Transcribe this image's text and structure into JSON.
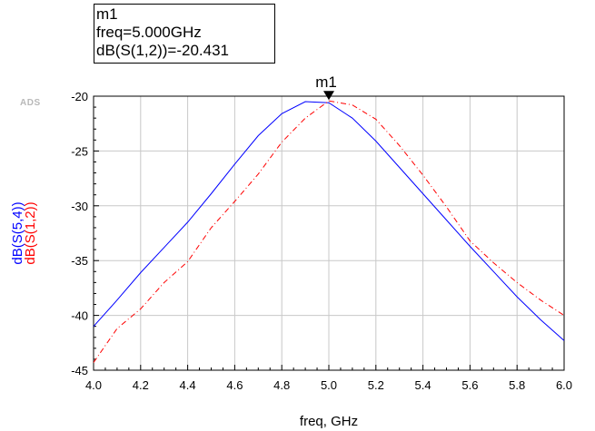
{
  "marker_readout": {
    "name": "m1",
    "freq_line": "freq=5.000GHz",
    "value_line": "dB(S(1,2))=-20.431"
  },
  "logo": "ADS",
  "marker_label": "m1",
  "chart_data": {
    "type": "line",
    "xlabel": "freq, GHz",
    "ylabels": [
      "dB(S(5,4))",
      "dB(S(1,2))"
    ],
    "xlim": [
      4.0,
      6.0
    ],
    "ylim": [
      -45,
      -20
    ],
    "x_ticks": [
      "4.0",
      "4.2",
      "4.4",
      "4.6",
      "4.8",
      "5.0",
      "5.2",
      "5.4",
      "5.6",
      "5.8",
      "6.0"
    ],
    "y_ticks": [
      "-20",
      "-25",
      "-30",
      "-35",
      "-40",
      "-45"
    ],
    "grid": true,
    "series": [
      {
        "name": "dB(S(5,4))",
        "color": "#0000ff",
        "style": "solid",
        "x": [
          4.0,
          4.1,
          4.2,
          4.3,
          4.4,
          4.5,
          4.6,
          4.7,
          4.8,
          4.9,
          5.0,
          5.1,
          5.2,
          5.3,
          5.4,
          5.5,
          5.6,
          5.7,
          5.8,
          5.9,
          6.0
        ],
        "y": [
          -41.0,
          -38.6,
          -36.1,
          -33.8,
          -31.5,
          -28.9,
          -26.2,
          -23.6,
          -21.6,
          -20.5,
          -20.6,
          -22.0,
          -24.1,
          -26.5,
          -28.9,
          -31.3,
          -33.7,
          -36.0,
          -38.3,
          -40.4,
          -42.3
        ]
      },
      {
        "name": "dB(S(1,2))",
        "color": "#ff0000",
        "style": "dashdot",
        "x": [
          4.0,
          4.1,
          4.2,
          4.3,
          4.4,
          4.5,
          4.6,
          4.7,
          4.8,
          4.9,
          5.0,
          5.1,
          5.2,
          5.3,
          5.4,
          5.5,
          5.6,
          5.7,
          5.8,
          5.9,
          6.0
        ],
        "y": [
          -44.3,
          -41.2,
          -39.4,
          -37.0,
          -35.1,
          -32.0,
          -29.6,
          -27.1,
          -24.2,
          -22.0,
          -20.43,
          -20.8,
          -22.1,
          -24.5,
          -27.2,
          -30.1,
          -33.2,
          -35.2,
          -37.0,
          -38.6,
          -40.0
        ]
      }
    ],
    "markers": [
      {
        "name": "m1",
        "series": "dB(S(1,2))",
        "x": 5.0,
        "y": -20.431
      }
    ]
  }
}
